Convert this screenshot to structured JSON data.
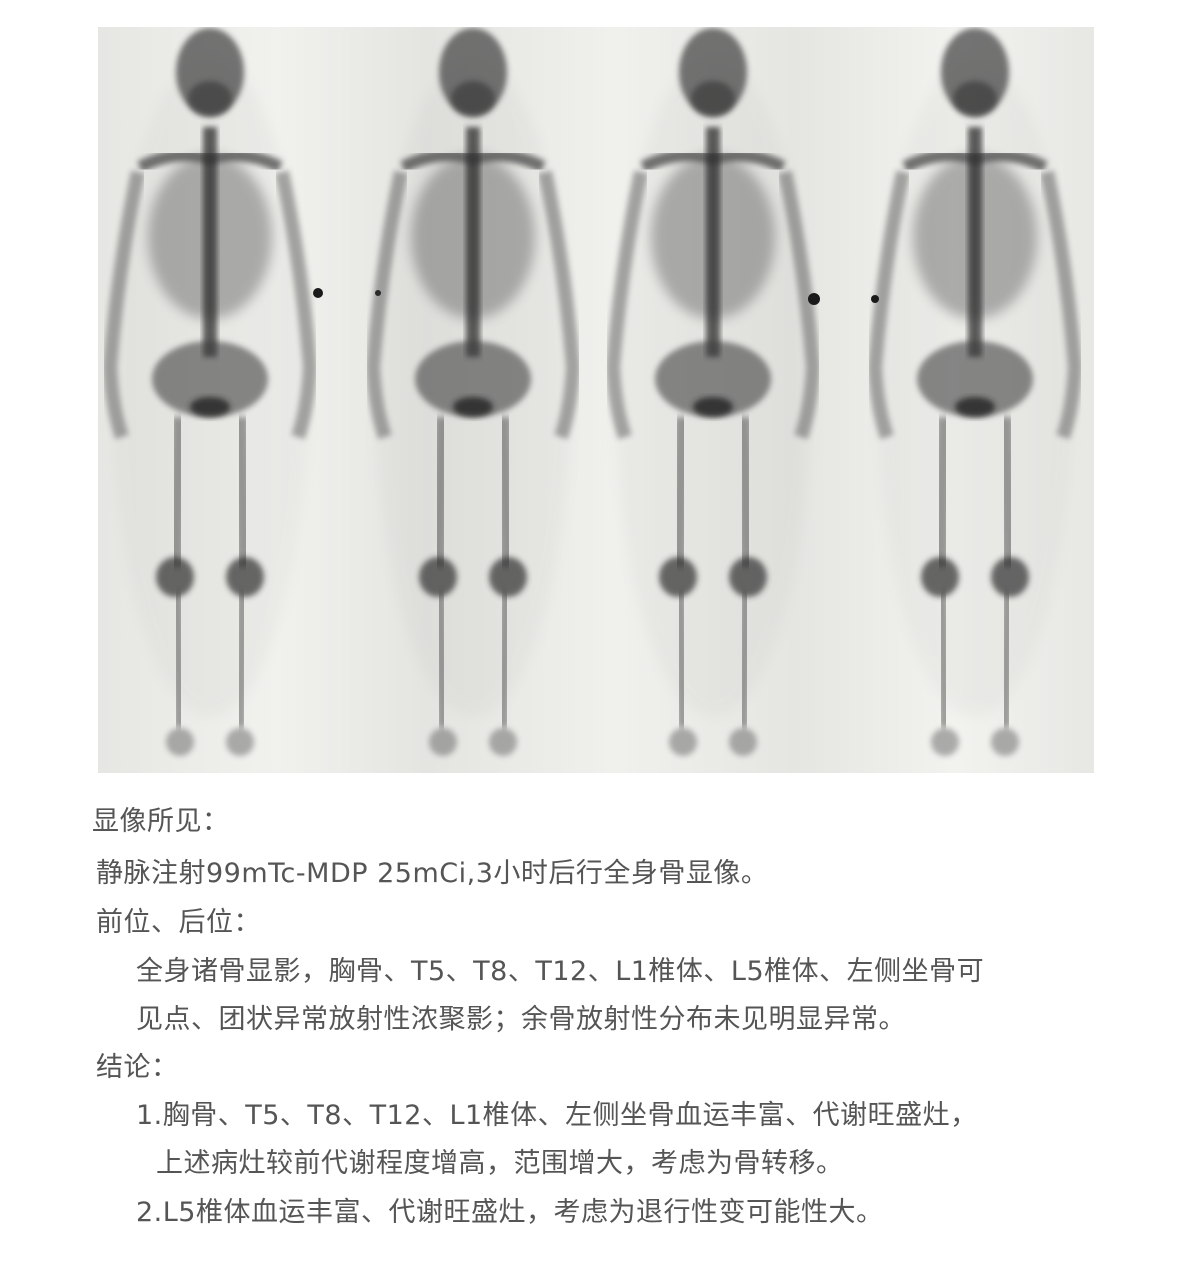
{
  "report": {
    "findings_heading": "显像所见：",
    "procedure": "静脉注射99mTc-MDP 25mCi,3小时后行全身骨显像。",
    "views_heading": "前位、后位：",
    "findings_line1": "全身诸骨显影，胸骨、T5、T8、T12、L1椎体、L5椎体、左侧坐骨可",
    "findings_line2": "见点、团状异常放射性浓聚影；余骨放射性分布未见明显异常。",
    "conclusion_heading": "结论：",
    "conclusion_1_line1": "1.胸骨、T5、T8、T12、L1椎体、左侧坐骨血运丰富、代谢旺盛灶，",
    "conclusion_1_line2": "上述病灶较前代谢程度增高，范围增大，考虑为骨转移。",
    "conclusion_2": "2.L5椎体血运丰富、代谢旺盛灶，考虑为退行性变可能性大。"
  },
  "scan_image": {
    "views": [
      "anterior",
      "posterior",
      "anterior",
      "posterior"
    ],
    "background_color": "#ecece9",
    "uptake_color": "#3a3a3a"
  }
}
